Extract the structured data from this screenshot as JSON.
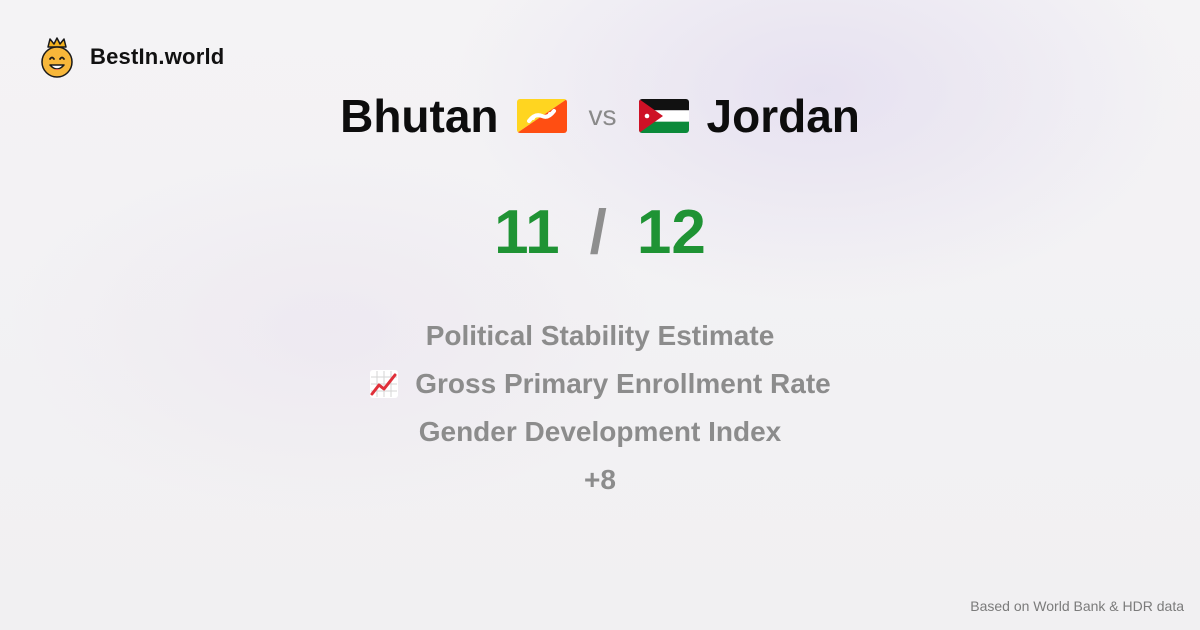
{
  "brand": {
    "name": "BestIn.world",
    "logo_icon": "crowned-smiley-icon"
  },
  "comparison": {
    "country_a": "Bhutan",
    "country_b": "Jordan",
    "vs_label": "vs",
    "flag_a_icon": "bhutan-flag-icon",
    "flag_b_icon": "jordan-flag-icon"
  },
  "score": {
    "a": "11",
    "separator": "/",
    "b": "12",
    "color": "#1f9334"
  },
  "metrics": [
    {
      "label": "Political Stability Estimate"
    },
    {
      "label": "Gross Primary Enrollment Rate",
      "icon": "trending-up-chart-icon"
    },
    {
      "label": "Gender Development Index"
    },
    {
      "label": "+8"
    }
  ],
  "footer": {
    "note": "Based on World Bank & HDR data"
  }
}
